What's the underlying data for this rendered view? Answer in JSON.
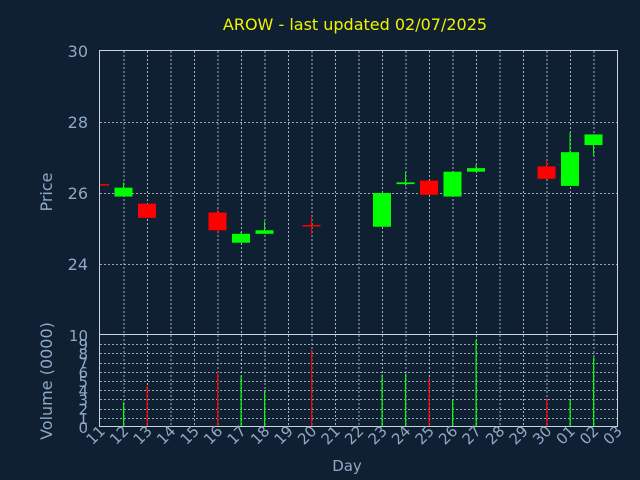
{
  "title": "AROW - last updated 02/07/2025",
  "colors": {
    "background": "#0f2033",
    "title": "#f2f200",
    "axis_text": "#8fa9c6",
    "frame": "#c9d4e0",
    "up": "#00ff00",
    "down": "#ff0000",
    "neutral": "#ff0000"
  },
  "chart_data": [
    {
      "type": "candlestick",
      "ylabel": "Price",
      "ylim": [
        22,
        30
      ],
      "yticks": [
        24,
        26,
        28,
        30
      ],
      "grid": true,
      "x_tick_labels": [
        "11",
        "12",
        "13",
        "14",
        "15",
        "16",
        "17",
        "18",
        "19",
        "20",
        "21",
        "22",
        "23",
        "24",
        "25",
        "26",
        "27",
        "28",
        "29",
        "30",
        "01",
        "02",
        "03"
      ],
      "ohlc": [
        {
          "x": "11",
          "open": 26.25,
          "high": 26.25,
          "low": 26.25,
          "close": 26.25
        },
        {
          "x": "12",
          "open": 25.9,
          "high": 26.3,
          "low": 25.9,
          "close": 26.15
        },
        {
          "x": "13",
          "open": 25.7,
          "high": 25.7,
          "low": 25.3,
          "close": 25.3
        },
        {
          "x": "16",
          "open": 25.45,
          "high": 25.55,
          "low": 24.85,
          "close": 24.95
        },
        {
          "x": "17",
          "open": 24.6,
          "high": 24.9,
          "low": 24.6,
          "close": 24.85
        },
        {
          "x": "18",
          "open": 24.85,
          "high": 25.2,
          "low": 24.85,
          "close": 24.95
        },
        {
          "x": "20",
          "open": 25.1,
          "high": 25.35,
          "low": 24.85,
          "close": 25.1
        },
        {
          "x": "23",
          "open": 25.05,
          "high": 26.0,
          "low": 25.05,
          "close": 26.0
        },
        {
          "x": "24",
          "open": 26.25,
          "high": 26.6,
          "low": 26.2,
          "close": 26.3
        },
        {
          "x": "25",
          "open": 26.35,
          "high": 26.35,
          "low": 25.95,
          "close": 25.95
        },
        {
          "x": "26",
          "open": 25.9,
          "high": 26.6,
          "low": 25.9,
          "close": 26.6
        },
        {
          "x": "27",
          "open": 26.6,
          "high": 26.8,
          "low": 26.6,
          "close": 26.7
        },
        {
          "x": "30",
          "open": 26.75,
          "high": 26.95,
          "low": 26.4,
          "close": 26.4
        },
        {
          "x": "01",
          "open": 26.2,
          "high": 27.7,
          "low": 26.2,
          "close": 27.15
        },
        {
          "x": "02",
          "open": 27.35,
          "high": 27.65,
          "low": 27.05,
          "close": 27.65
        }
      ]
    },
    {
      "type": "bar",
      "ylabel": "Volume (0000)",
      "xlabel": "Day",
      "ylim": [
        0,
        10
      ],
      "yticks": [
        0,
        1,
        2,
        3,
        4,
        5,
        6,
        7,
        8,
        9,
        10
      ],
      "grid": true,
      "categories": [
        "11",
        "12",
        "13",
        "14",
        "15",
        "16",
        "17",
        "18",
        "19",
        "20",
        "21",
        "22",
        "23",
        "24",
        "25",
        "26",
        "27",
        "28",
        "29",
        "30",
        "01",
        "02",
        "03"
      ],
      "values": [
        0,
        2.7,
        4.5,
        0,
        0,
        6.0,
        5.6,
        3.9,
        0,
        8.4,
        0,
        0,
        5.7,
        5.8,
        5.4,
        3.0,
        9.5,
        0,
        0,
        3.1,
        3.0,
        7.6,
        0
      ],
      "bar_colors": [
        "up",
        "up",
        "down",
        "up",
        "up",
        "down",
        "up",
        "up",
        "up",
        "down",
        "up",
        "up",
        "up",
        "up",
        "down",
        "up",
        "up",
        "up",
        "up",
        "down",
        "up",
        "up",
        "up"
      ]
    }
  ]
}
